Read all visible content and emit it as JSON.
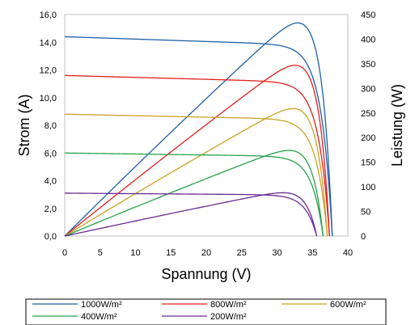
{
  "chart_data": {
    "type": "line",
    "xlabel": "Spannung (V)",
    "ylabel_left": "Strom (A)",
    "ylabel_right": "Leistung (W)",
    "xlim": [
      0,
      40
    ],
    "ylim_left": [
      0,
      16
    ],
    "ylim_right": [
      0,
      450
    ],
    "x_ticks": [
      0,
      5,
      10,
      15,
      20,
      25,
      30,
      35,
      40
    ],
    "y_left_ticks": [
      "0,0",
      "2,0",
      "4,0",
      "6,0",
      "8,0",
      "10,0",
      "12,0",
      "14,0",
      "16,0"
    ],
    "y_right_ticks": [
      "0",
      "50",
      "100",
      "150",
      "200",
      "250",
      "300",
      "350",
      "400",
      "450"
    ],
    "grid": false,
    "legend_position": "bottom",
    "series": [
      {
        "name": "1000W/m²",
        "color": "#1f5fa8",
        "isc": 14.4,
        "voc": 37.8,
        "pmax_v": 31.8,
        "pmax_p": 433,
        "current_at_pmax": 13.6
      },
      {
        "name": "800W/m²",
        "color": "#e0201b",
        "isc": 11.6,
        "voc": 37.4,
        "pmax_v": 31.7,
        "pmax_p": 347,
        "current_at_pmax": 10.9
      },
      {
        "name": "600W/m²",
        "color": "#c9a227",
        "isc": 8.8,
        "voc": 37.1,
        "pmax_v": 31.6,
        "pmax_p": 259,
        "current_at_pmax": 8.2
      },
      {
        "name": "400W/m²",
        "color": "#27a24b",
        "isc": 6.0,
        "voc": 36.5,
        "pmax_v": 31.4,
        "pmax_p": 174,
        "current_at_pmax": 5.5
      },
      {
        "name": "200W/m²",
        "color": "#6a2c91",
        "isc": 3.1,
        "voc": 35.6,
        "pmax_v": 30.9,
        "pmax_p": 88,
        "current_at_pmax": 2.85
      }
    ]
  }
}
